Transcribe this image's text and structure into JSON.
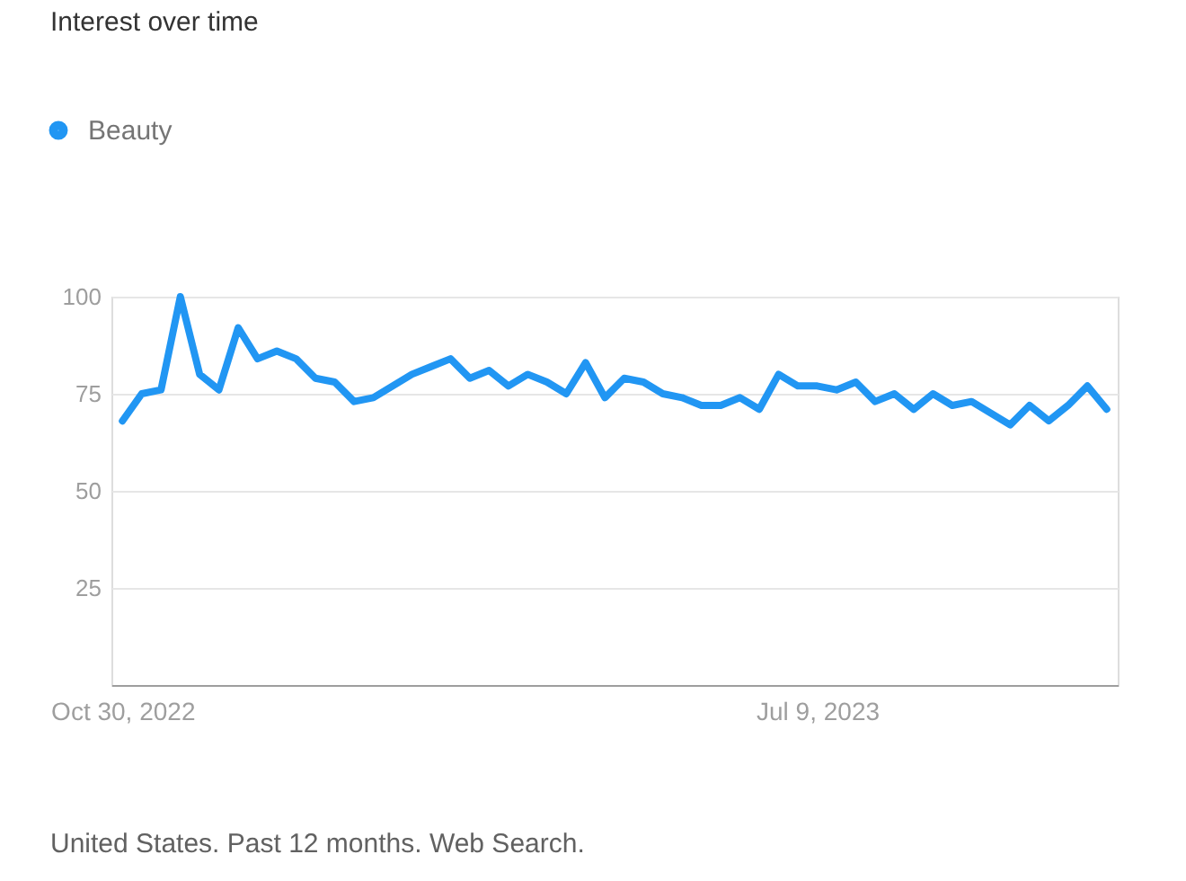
{
  "chart_data": {
    "type": "line",
    "title": "Interest over time",
    "x": [
      "2022-10-30",
      "2022-11-06",
      "2022-11-13",
      "2022-11-20",
      "2022-11-27",
      "2022-12-04",
      "2022-12-11",
      "2022-12-18",
      "2022-12-25",
      "2023-01-01",
      "2023-01-08",
      "2023-01-15",
      "2023-01-22",
      "2023-01-29",
      "2023-02-05",
      "2023-02-12",
      "2023-02-19",
      "2023-02-26",
      "2023-03-05",
      "2023-03-12",
      "2023-03-19",
      "2023-03-26",
      "2023-04-02",
      "2023-04-09",
      "2023-04-16",
      "2023-04-23",
      "2023-04-30",
      "2023-05-07",
      "2023-05-14",
      "2023-05-21",
      "2023-05-28",
      "2023-06-04",
      "2023-06-11",
      "2023-06-18",
      "2023-06-25",
      "2023-07-02",
      "2023-07-09",
      "2023-07-16",
      "2023-07-23",
      "2023-07-30",
      "2023-08-06",
      "2023-08-13",
      "2023-08-20",
      "2023-08-27",
      "2023-09-03",
      "2023-09-10",
      "2023-09-17",
      "2023-09-24",
      "2023-10-01",
      "2023-10-08",
      "2023-10-15",
      "2023-10-22"
    ],
    "series": [
      {
        "name": "Beauty",
        "color": "#2196f3",
        "values": [
          68,
          75,
          76,
          100,
          80,
          76,
          92,
          84,
          86,
          84,
          79,
          78,
          73,
          74,
          77,
          80,
          82,
          84,
          79,
          81,
          77,
          80,
          78,
          75,
          83,
          74,
          79,
          78,
          75,
          74,
          72,
          72,
          74,
          71,
          80,
          77,
          77,
          76,
          78,
          73,
          75,
          71,
          75,
          72,
          73,
          70,
          67,
          72,
          68,
          72,
          77,
          71
        ]
      }
    ],
    "xlim": [
      "2022-10-26",
      "2023-10-26"
    ],
    "xticks": [
      {
        "value": "2022-10-30",
        "label": "Oct 30, 2022"
      },
      {
        "value": "2023-07-09",
        "label": "Jul 9, 2023"
      }
    ],
    "ylim": [
      0,
      100
    ],
    "yticks": [
      25,
      50,
      75,
      100
    ],
    "grid": "y",
    "legend": "top left",
    "line_style": "solid",
    "annotations": [
      "United States. Past 12 months. Web Search."
    ]
  }
}
